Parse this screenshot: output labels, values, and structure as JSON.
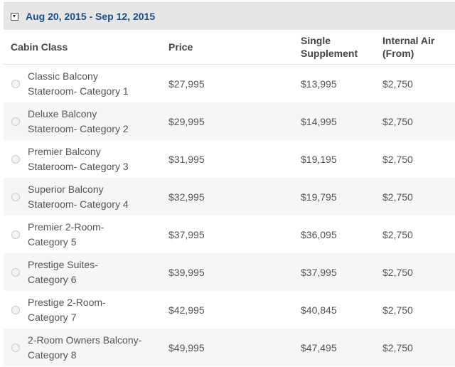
{
  "date_range": "Aug 20, 2015 - Sep 12, 2015",
  "columns": {
    "cabin": "Cabin Class",
    "price": "Price",
    "single_line1": "Single",
    "single_line2": "Supplement",
    "air_line1": "Internal Air",
    "air_line2": "(From)"
  },
  "rows": [
    {
      "line1": "Classic Balcony",
      "line2": "Stateroom- Category 1",
      "price": "$27,995",
      "supplement": "$13,995",
      "air": "$2,750"
    },
    {
      "line1": "Deluxe Balcony",
      "line2": "Stateroom- Category 2",
      "price": "$29,995",
      "supplement": "$14,995",
      "air": "$2,750"
    },
    {
      "line1": "Premier Balcony",
      "line2": "Stateroom- Category 3",
      "price": "$31,995",
      "supplement": "$19,195",
      "air": "$2,750"
    },
    {
      "line1": "Superior Balcony",
      "line2": "Stateroom- Category 4",
      "price": "$32,995",
      "supplement": "$19,795",
      "air": "$2,750"
    },
    {
      "line1": "Premier 2-Room-",
      "line2": "Category 5",
      "price": "$37,995",
      "supplement": "$36,095",
      "air": "$2,750"
    },
    {
      "line1": "Prestige Suites-",
      "line2": "Category 6",
      "price": "$39,995",
      "supplement": "$37,995",
      "air": "$2,750"
    },
    {
      "line1": "Prestige 2-Room-",
      "line2": "Category 7",
      "price": "$42,995",
      "supplement": "$40,845",
      "air": "$2,750"
    },
    {
      "line1": "2-Room Owners Balcony-",
      "line2": "Category 8",
      "price": "$49,995",
      "supplement": "$47,495",
      "air": "$2,750"
    }
  ]
}
